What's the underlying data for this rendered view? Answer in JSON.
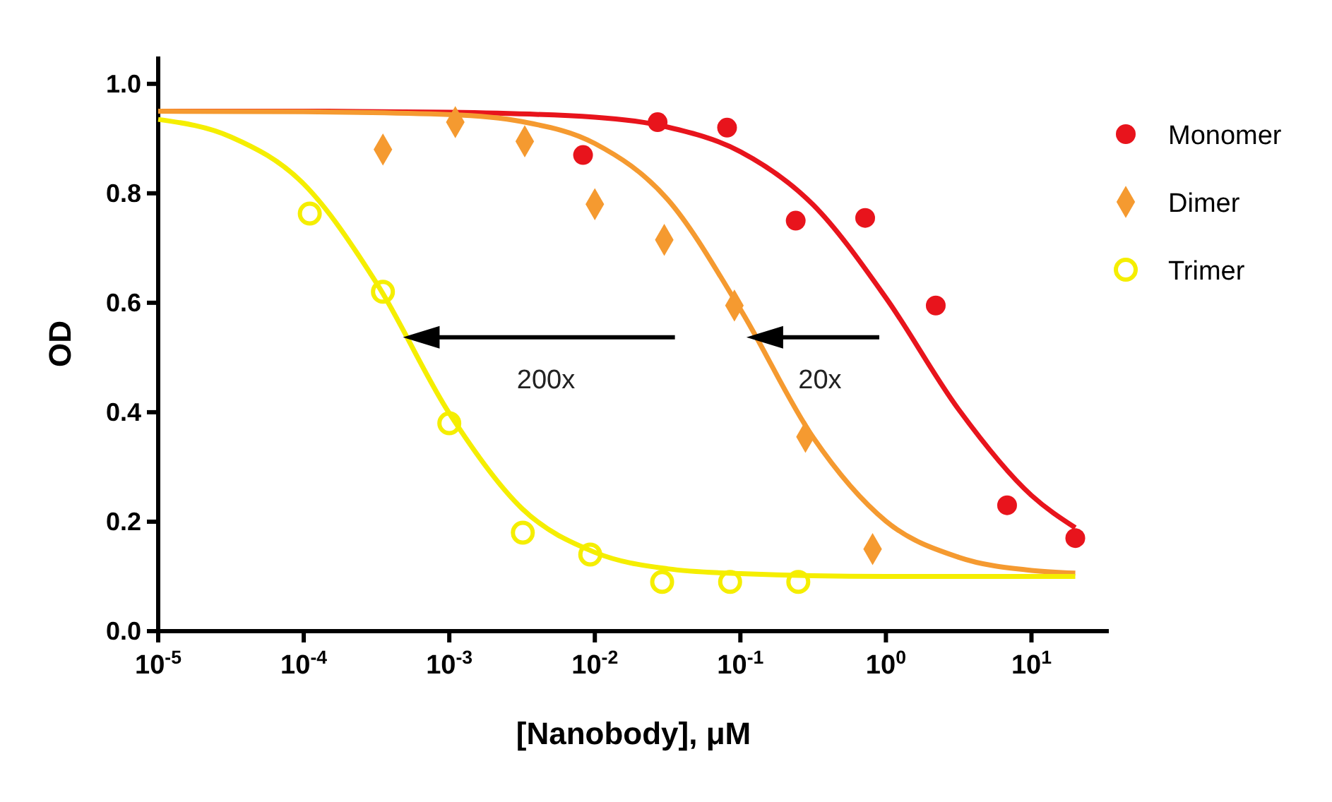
{
  "chart_data": {
    "type": "scatter",
    "xlabel": "[Nanobody], μM",
    "ylabel": "OD",
    "log": "x",
    "xlim": [
      1e-05,
      34
    ],
    "ylim": [
      0,
      1.05
    ],
    "xticks": [
      {
        "value": 1e-05,
        "label": "10$^{-5}$"
      },
      {
        "value": 0.0001,
        "label": "10$^{-4}$"
      },
      {
        "value": 0.001,
        "label": "10$^{-3}$"
      },
      {
        "value": 0.01,
        "label": "10$^{-2}$"
      },
      {
        "value": 0.1,
        "label": "10$^{-1}$"
      },
      {
        "value": 1,
        "label": "10$^{0}$"
      },
      {
        "value": 10,
        "label": "10$^{1}$"
      }
    ],
    "yticks": [
      {
        "value": 0,
        "label": "0.0"
      },
      {
        "value": 0.2,
        "label": "0.2"
      },
      {
        "value": 0.4,
        "label": "0.4"
      },
      {
        "value": 0.6,
        "label": "0.6"
      },
      {
        "value": 0.8,
        "label": "0.8"
      },
      {
        "value": 1,
        "label": "1.0"
      }
    ],
    "grid": false,
    "legend": "top right",
    "annotations": [
      "200x",
      "20x"
    ],
    "series": [
      {
        "type": "line",
        "color": "#e8141c",
        "x": [
          1e-05,
          0.0001,
          0.001,
          0.01,
          0.0316,
          0.1,
          0.316,
          1,
          3.16,
          10,
          20
        ],
        "values": [
          0.95,
          0.95,
          0.948,
          0.939,
          0.921,
          0.876,
          0.779,
          0.609,
          0.405,
          0.248,
          0.189
        ]
      },
      {
        "type": "line",
        "color": "#f59a30",
        "x": [
          1e-05,
          0.0001,
          0.001,
          0.00316,
          0.01,
          0.0316,
          0.1,
          0.316,
          1,
          3.16,
          10,
          20
        ],
        "values": [
          0.95,
          0.949,
          0.944,
          0.931,
          0.891,
          0.789,
          0.588,
          0.354,
          0.201,
          0.135,
          0.111,
          0.106
        ]
      },
      {
        "type": "line",
        "color": "#f5ee00",
        "x": [
          1e-05,
          3.16e-05,
          0.0001,
          0.000316,
          0.001,
          0.00316,
          0.01,
          0.0316,
          0.1,
          1,
          20
        ],
        "values": [
          0.935,
          0.903,
          0.817,
          0.636,
          0.398,
          0.224,
          0.144,
          0.114,
          0.105,
          0.1,
          0.1
        ]
      },
      {
        "name": "Monomer",
        "color": "#e8141c",
        "marker": "circle",
        "x": [
          0.0083,
          0.027,
          0.081,
          0.24,
          0.72,
          2.2,
          6.8,
          20
        ],
        "values": [
          0.87,
          0.93,
          0.92,
          0.75,
          0.755,
          0.595,
          0.23,
          0.17
        ]
      },
      {
        "name": "Dimer",
        "color": "#f59a30",
        "marker": "diamond",
        "x": [
          0.00035,
          0.0011,
          0.0033,
          0.01,
          0.03,
          0.091,
          0.28,
          0.81
        ],
        "values": [
          0.88,
          0.93,
          0.895,
          0.78,
          0.715,
          0.595,
          0.355,
          0.15
        ]
      },
      {
        "name": "Trimer",
        "color": "#f5ee00",
        "marker": "circle-open",
        "x": [
          0.00011,
          0.00035,
          0.001,
          0.0032,
          0.0093,
          0.029,
          0.085,
          0.25
        ],
        "values": [
          0.763,
          0.62,
          0.38,
          0.18,
          0.14,
          0.09,
          0.09,
          0.09
        ]
      }
    ]
  }
}
